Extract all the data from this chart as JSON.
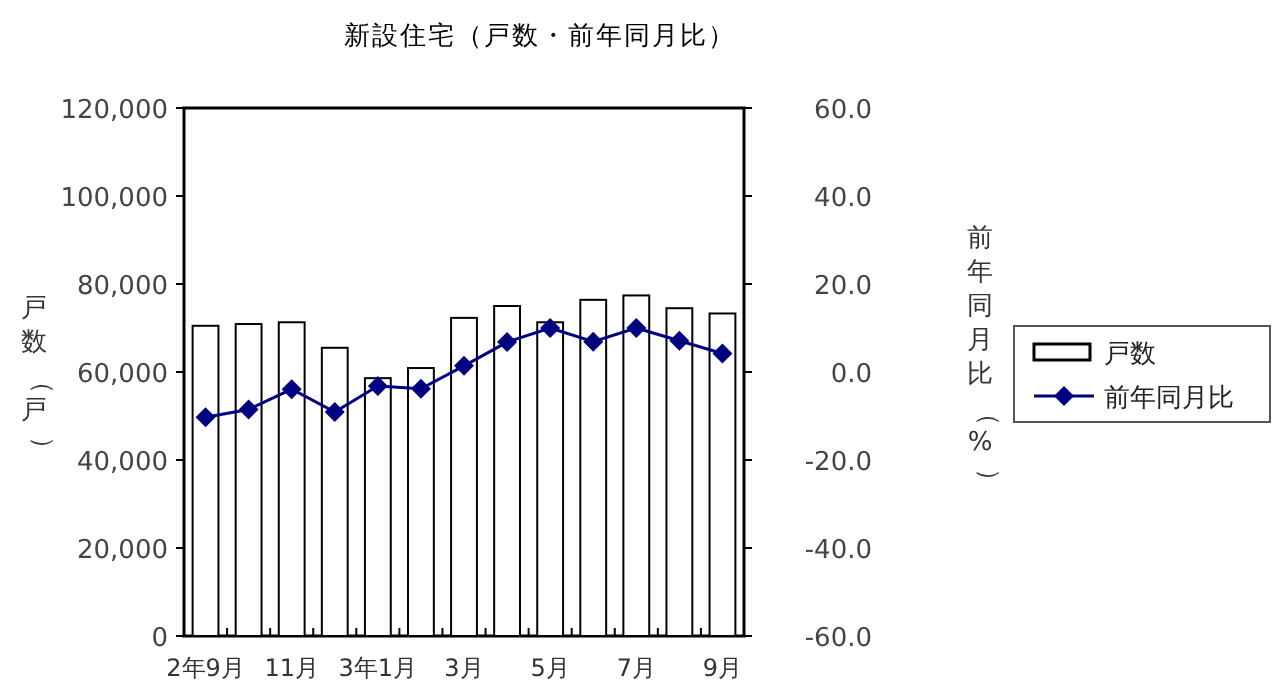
{
  "chart_data": {
    "type": "bar",
    "title": "新設住宅（戸数・前年同月比）",
    "ylabel": "戸数（戸）",
    "y2label": "前年同月比（%）",
    "categories": [
      "2年9月",
      null,
      "11月",
      null,
      "3年1月",
      null,
      "3月",
      null,
      "5月",
      null,
      "7月",
      null,
      "9月"
    ],
    "series": [
      {
        "name": "戸数",
        "color": "#ffffff",
        "values": [
          70500,
          70900,
          71300,
          65500,
          58600,
          60900,
          72300,
          75000,
          71300,
          76400,
          77400,
          74500,
          73300
        ]
      },
      {
        "name": "前年同月比",
        "type": "line",
        "axis": "y2",
        "color": "#000080",
        "values": [
          -10.3,
          -8.5,
          -3.9,
          -9.1,
          -3.2,
          -3.8,
          1.4,
          6.8,
          10.0,
          6.9,
          10.0,
          7.1,
          4.2
        ]
      }
    ],
    "ylim": [
      0,
      120000
    ],
    "yticks": [
      {
        "value": 0,
        "label": "0"
      },
      {
        "value": 20000,
        "label": "20,000"
      },
      {
        "value": 40000,
        "label": "40,000"
      },
      {
        "value": 60000,
        "label": "60,000"
      },
      {
        "value": 80000,
        "label": "80,000"
      },
      {
        "value": 100000,
        "label": "100,000"
      },
      {
        "value": 120000,
        "label": "120,000"
      }
    ],
    "y2lim": [
      -60,
      60
    ],
    "y2ticks": [
      {
        "value": -60,
        "label": "-60.0"
      },
      {
        "value": -40,
        "label": "-40.0"
      },
      {
        "value": -20,
        "label": "-20.0"
      },
      {
        "value": 0,
        "label": "0.0"
      },
      {
        "value": 20,
        "label": "20.0"
      },
      {
        "value": 40,
        "label": "40.0"
      },
      {
        "value": 60,
        "label": "60.0"
      }
    ],
    "marker": "diamond",
    "line_style": "solid",
    "legend": "right",
    "grid": false
  }
}
